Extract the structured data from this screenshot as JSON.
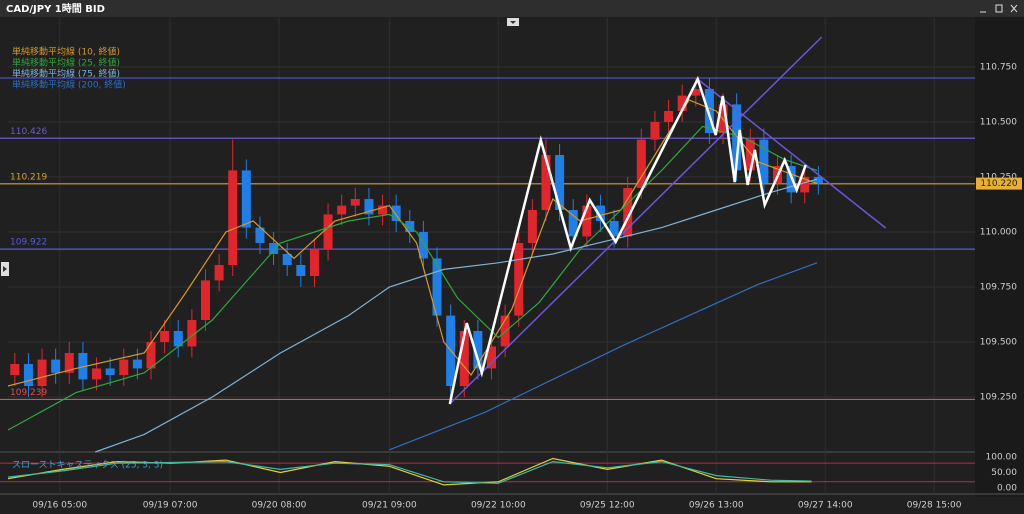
{
  "chart_data": {
    "type": "candlestick",
    "title": "CAD/JPY 1時間 BID",
    "xlim": [
      0,
      71
    ],
    "ylim": [
      109.0,
      110.95
    ],
    "xticks": [
      {
        "value": 3.8,
        "label": "09/16 05:00"
      },
      {
        "value": 11.9,
        "label": "09/19 07:00"
      },
      {
        "value": 19.9,
        "label": "09/20 08:00"
      },
      {
        "value": 28,
        "label": "09/21 09:00"
      },
      {
        "value": 36,
        "label": "09/22 10:00"
      },
      {
        "value": 44,
        "label": "09/25 12:00"
      },
      {
        "value": 52,
        "label": "09/26 13:00"
      },
      {
        "value": 60,
        "label": "09/27 14:00"
      },
      {
        "value": 68,
        "label": "09/28 15:00"
      }
    ],
    "yticks": [
      {
        "value": 109.25,
        "label": "109.250"
      },
      {
        "value": 109.5,
        "label": "109.500"
      },
      {
        "value": 109.75,
        "label": "109.750"
      },
      {
        "value": 110.0,
        "label": "110.000"
      },
      {
        "value": 110.25,
        "label": "110.250"
      },
      {
        "value": 110.5,
        "label": "110.500"
      },
      {
        "value": 110.75,
        "label": "110.750"
      }
    ],
    "grid": true,
    "up_color": "#e0262c",
    "down_color": "#1f7fe6",
    "open": [
      109.35,
      109.4,
      109.3,
      109.42,
      109.36,
      109.45,
      109.33,
      109.38,
      109.35,
      109.42,
      109.38,
      109.5,
      109.55,
      109.48,
      109.6,
      109.78,
      109.85,
      110.28,
      110.02,
      109.95,
      109.9,
      109.85,
      109.8,
      109.92,
      110.08,
      110.12,
      110.15,
      110.08,
      110.12,
      110.05,
      110.0,
      109.88,
      109.62,
      109.3,
      109.55,
      109.38,
      109.48,
      109.62,
      109.95,
      110.1,
      110.35,
      110.1,
      109.98,
      110.12,
      110.05,
      109.98,
      110.2,
      110.42,
      110.5,
      110.55,
      110.62,
      110.65,
      110.45,
      110.58,
      110.28,
      110.42,
      110.22,
      110.3,
      110.18,
      110.25
    ],
    "high": [
      109.45,
      109.45,
      109.47,
      109.47,
      109.5,
      109.5,
      109.43,
      109.43,
      109.47,
      109.47,
      109.55,
      109.6,
      109.6,
      109.65,
      109.83,
      109.9,
      110.42,
      110.33,
      110.07,
      110.0,
      109.95,
      109.9,
      109.97,
      110.13,
      110.17,
      110.2,
      110.2,
      110.17,
      110.17,
      110.1,
      110.05,
      109.93,
      109.67,
      109.6,
      109.6,
      109.53,
      109.67,
      110.0,
      110.15,
      110.42,
      110.4,
      110.15,
      110.17,
      110.17,
      110.1,
      110.25,
      110.47,
      110.55,
      110.6,
      110.67,
      110.7,
      110.7,
      110.63,
      110.63,
      110.47,
      110.47,
      110.35,
      110.35,
      110.3,
      110.3
    ],
    "low": [
      109.3,
      109.25,
      109.25,
      109.31,
      109.31,
      109.28,
      109.28,
      109.3,
      109.3,
      109.33,
      109.33,
      109.45,
      109.43,
      109.43,
      109.55,
      109.73,
      109.8,
      109.97,
      109.9,
      109.85,
      109.8,
      109.75,
      109.75,
      109.87,
      110.03,
      110.07,
      110.03,
      110.03,
      110.0,
      109.95,
      109.83,
      109.57,
      109.22,
      109.25,
      109.33,
      109.33,
      109.43,
      109.57,
      109.9,
      110.05,
      110.05,
      109.93,
      109.93,
      110.0,
      109.93,
      109.93,
      110.15,
      110.37,
      110.45,
      110.5,
      110.57,
      110.4,
      110.4,
      110.23,
      110.23,
      110.17,
      110.17,
      110.13,
      110.13,
      110.17
    ],
    "close": [
      109.4,
      109.3,
      109.42,
      109.36,
      109.45,
      109.33,
      109.38,
      109.35,
      109.42,
      109.38,
      109.5,
      109.55,
      109.48,
      109.6,
      109.78,
      109.85,
      110.28,
      110.02,
      109.95,
      109.9,
      109.85,
      109.8,
      109.92,
      110.08,
      110.12,
      110.15,
      110.08,
      110.12,
      110.05,
      110.0,
      109.88,
      109.62,
      109.3,
      109.55,
      109.38,
      109.48,
      109.62,
      109.95,
      110.1,
      110.35,
      110.1,
      109.98,
      110.12,
      110.05,
      109.98,
      110.2,
      110.42,
      110.5,
      110.55,
      110.62,
      110.65,
      110.45,
      110.58,
      110.28,
      110.42,
      110.22,
      110.3,
      110.18,
      110.25,
      110.22
    ],
    "series": [
      {
        "name": "単純移動平均線 (10, 終値)",
        "color": "#d39a2c",
        "x": [
          0,
          5,
          10,
          13,
          16,
          18,
          21,
          24,
          28,
          30,
          32,
          34,
          37,
          40,
          42,
          45,
          48,
          50,
          52,
          55,
          59.4
        ],
        "values": [
          109.3,
          109.38,
          109.45,
          109.72,
          110.0,
          110.05,
          109.88,
          110.05,
          110.12,
          109.95,
          109.5,
          109.35,
          109.65,
          110.15,
          110.05,
          110.1,
          110.4,
          110.6,
          110.55,
          110.32,
          110.22
        ]
      },
      {
        "name": "単純移動平均線 (25, 終値)",
        "color": "#2fa83a",
        "x": [
          0,
          5,
          10,
          15,
          20,
          25,
          28,
          30,
          33,
          36,
          39,
          42,
          45,
          48,
          51,
          54,
          57,
          59.4
        ],
        "values": [
          109.1,
          109.27,
          109.36,
          109.6,
          109.95,
          110.05,
          110.08,
          110.0,
          109.7,
          109.52,
          109.68,
          109.92,
          110.1,
          110.28,
          110.48,
          110.43,
          110.33,
          110.28
        ]
      },
      {
        "name": "単純移動平均線 (75, 終値)",
        "color": "#7fb2d8",
        "x": [
          6.4,
          10,
          15,
          20,
          25,
          28,
          32,
          36,
          40,
          44,
          48,
          52,
          56,
          59.4
        ],
        "values": [
          109.0,
          109.08,
          109.25,
          109.45,
          109.62,
          109.75,
          109.83,
          109.86,
          109.9,
          109.96,
          110.02,
          110.1,
          110.18,
          110.24
        ]
      },
      {
        "name": "単純移動平均線 (200, 終値)",
        "color": "#2d6fc2",
        "x": [
          28,
          35,
          40,
          45,
          50,
          55,
          59.4
        ],
        "values": [
          109.01,
          109.18,
          109.33,
          109.48,
          109.62,
          109.76,
          109.86
        ]
      }
    ],
    "hlines": [
      {
        "value": 110.7,
        "color": "#4e4ec8"
      },
      {
        "value": 110.426,
        "label": 110.426,
        "color": "#6a5ad0"
      },
      {
        "value": 110.219,
        "label": 110.219,
        "color": "#d4a02c"
      },
      {
        "value": 109.922,
        "label": 109.922,
        "color": "#5a5ad8"
      },
      {
        "value": 109.239,
        "label": 109.239,
        "color": "#c8585a"
      }
    ],
    "last_price": {
      "value": 110.22,
      "label": "110.220"
    },
    "trendlines": [
      {
        "color": "#6e55d8",
        "x": [
          32.44,
          59.74
        ],
        "values": [
          109.218,
          110.886
        ]
      },
      {
        "color": "#6e55d8",
        "x": [
          50.64,
          64.44
        ],
        "values": [
          110.695,
          110.018
        ]
      }
    ],
    "zigzag": {
      "color": "#ffffff",
      "x": [
        32.44,
        33.69,
        34.79,
        39.12,
        41.32,
        42.72,
        44.62,
        50.64,
        51.96,
        52.48,
        53.36,
        53.72,
        54.31,
        54.83,
        55.56,
        57.03,
        57.91,
        58.57
      ],
      "values": [
        109.218,
        109.586,
        109.359,
        110.418,
        109.927,
        110.145,
        109.955,
        110.695,
        110.441,
        110.618,
        110.227,
        110.464,
        110.214,
        110.373,
        110.123,
        110.327,
        110.191,
        110.305
      ]
    },
    "oscillator": {
      "title": "スローストキャスティクス (25, 3, 3)",
      "ylim": [
        -13,
        116
      ],
      "yticks": [
        {
          "value": 100,
          "label": "100.00"
        },
        {
          "value": 50,
          "label": "50.00"
        },
        {
          "value": 0,
          "label": "0.00"
        }
      ],
      "levels": [
        80,
        20
      ],
      "level_color": "#b0304a",
      "series": [
        {
          "color": "#e0d040",
          "x": [
            0,
            4,
            8,
            12,
            16,
            20,
            24,
            28,
            32,
            36,
            40,
            44,
            48,
            52,
            56,
            59
          ],
          "values": [
            30,
            60,
            85,
            80,
            90,
            50,
            85,
            70,
            10,
            20,
            95,
            60,
            90,
            30,
            20,
            20
          ]
        },
        {
          "color": "#45b8a0",
          "x": [
            0,
            4,
            8,
            12,
            16,
            20,
            24,
            28,
            32,
            36,
            40,
            44,
            48,
            52,
            56,
            59
          ],
          "values": [
            35,
            55,
            80,
            82,
            85,
            60,
            80,
            75,
            20,
            15,
            85,
            65,
            85,
            40,
            25,
            22
          ]
        }
      ]
    }
  }
}
